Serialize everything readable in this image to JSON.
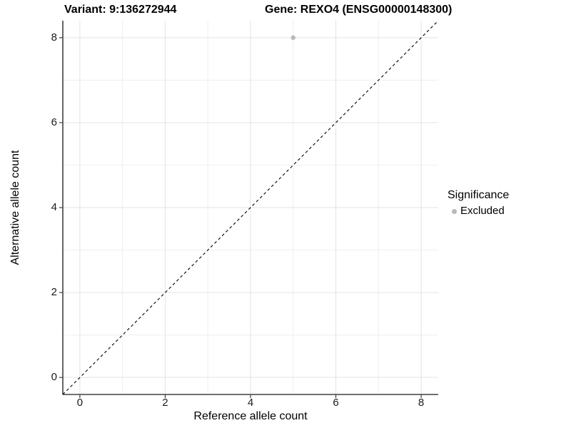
{
  "header": {
    "variant_title": "Variant: 9:136272944",
    "gene_title": "Gene: REXO4 (ENSG00000148300)"
  },
  "chart_data": {
    "type": "scatter",
    "title_left": "Variant: 9:136272944",
    "title_right": "Gene: REXO4 (ENSG00000148300)",
    "xlabel": "Reference allele count",
    "ylabel": "Alternative allele count",
    "xlim": [
      -0.4,
      8.4
    ],
    "ylim": [
      -0.4,
      8.4
    ],
    "x_ticks": [
      0,
      2,
      4,
      6,
      8
    ],
    "y_ticks": [
      0,
      2,
      4,
      6,
      8
    ],
    "minor_gridlines_x": [
      1,
      3,
      5,
      7
    ],
    "minor_gridlines_y": [
      1,
      3,
      5,
      7
    ],
    "grid": true,
    "points": [
      {
        "x": 5,
        "y": 8,
        "series": "Excluded"
      }
    ],
    "abline": {
      "slope": 1,
      "intercept": 0,
      "style": "dashed",
      "color": "#000000"
    },
    "legend": {
      "title": "Significance",
      "position": "right",
      "items": [
        {
          "label": "Excluded",
          "color": "#b9b9b9"
        }
      ]
    },
    "colors": {
      "point": "#b9b9b9",
      "grid_major": "#e3e3e3",
      "grid_minor": "#efefef",
      "axis_line": "#404040",
      "tick_mark": "#404040",
      "text": "#000000",
      "background": "#ffffff"
    }
  }
}
